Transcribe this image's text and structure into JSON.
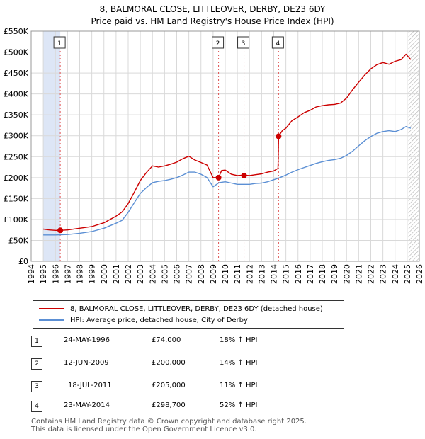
{
  "title_line1": "8, BALMORAL CLOSE, LITTLEOVER, DERBY, DE23 6DY",
  "title_line2": "Price paid vs. HM Land Registry's House Price Index (HPI)",
  "colors": {
    "property": "#cc0000",
    "hpi": "#5b8fd4",
    "band": "#dde6f6",
    "marker_line": "#e05050"
  },
  "legend": {
    "property_label": "8, BALMORAL CLOSE, LITTLEOVER, DERBY, DE23 6DY (detached house)",
    "hpi_label": "HPI: Average price, detached house, City of Derby"
  },
  "transactions": [
    {
      "num": "1",
      "date": "24-MAY-1996",
      "price": "£74,000",
      "hpi_change": "18% ↑ HPI"
    },
    {
      "num": "2",
      "date": "12-JUN-2009",
      "price": "£200,000",
      "hpi_change": "14% ↑ HPI"
    },
    {
      "num": "3",
      "date": "18-JUL-2011",
      "price": "£205,000",
      "hpi_change": "11% ↑ HPI"
    },
    {
      "num": "4",
      "date": "23-MAY-2014",
      "price": "£298,700",
      "hpi_change": "52% ↑ HPI"
    }
  ],
  "footer": {
    "line1": "Contains HM Land Registry data © Crown copyright and database right 2025.",
    "line2": "This data is licensed under the Open Government Licence v3.0."
  },
  "chart_data": {
    "type": "line",
    "title": "8, BALMORAL CLOSE, LITTLEOVER, DERBY, DE23 6DY",
    "subtitle": "Price paid vs. HM Land Registry's House Price Index (HPI)",
    "xlim": [
      1994,
      2026
    ],
    "ylim": [
      0,
      550000
    ],
    "x_ticks": [
      1994,
      1995,
      1996,
      1997,
      1998,
      1999,
      2000,
      2001,
      2002,
      2003,
      2004,
      2005,
      2006,
      2007,
      2008,
      2009,
      2010,
      2011,
      2012,
      2013,
      2014,
      2015,
      2016,
      2017,
      2018,
      2019,
      2020,
      2021,
      2022,
      2023,
      2024,
      2025,
      2026
    ],
    "x_tick_labels": [
      "1994",
      "1995",
      "1996",
      "1997",
      "1998",
      "1999",
      "2000",
      "2001",
      "2002",
      "2003",
      "2004",
      "2005",
      "2006",
      "2007",
      "2008",
      "2009",
      "2010",
      "2011",
      "2012",
      "2013",
      "2014",
      "2015",
      "2016",
      "2017",
      "2018",
      "2019",
      "2020",
      "2021",
      "2022",
      "2023",
      "2024",
      "2025",
      "2026"
    ],
    "y_ticks": [
      0,
      50000,
      100000,
      150000,
      200000,
      250000,
      300000,
      350000,
      400000,
      450000,
      500000,
      550000
    ],
    "y_tick_labels": [
      "£0",
      "£50K",
      "£100K",
      "£150K",
      "£200K",
      "£250K",
      "£300K",
      "£350K",
      "£400K",
      "£450K",
      "£500K",
      "£550K"
    ],
    "shaded_band": [
      1995.0,
      1996.4
    ],
    "future_hatch_from": 2025.1,
    "grid": true,
    "series": [
      {
        "name": "8, BALMORAL CLOSE, LITTLEOVER, DERBY, DE23 6DY (detached house)",
        "color": "#cc0000",
        "x": [
          1995.0,
          1995.5,
          1996.0,
          1996.4,
          1997.0,
          1998.0,
          1999.0,
          2000.0,
          2001.0,
          2001.5,
          2002.0,
          2002.5,
          2003.0,
          2003.5,
          2004.0,
          2004.5,
          2005.0,
          2005.5,
          2006.0,
          2006.5,
          2007.0,
          2007.5,
          2008.0,
          2008.5,
          2009.0,
          2009.45,
          2009.7,
          2010.0,
          2010.5,
          2011.0,
          2011.5,
          2012.0,
          2012.5,
          2013.0,
          2013.5,
          2014.0,
          2014.35,
          2014.4,
          2014.7,
          2015.0,
          2015.5,
          2016.0,
          2016.5,
          2017.0,
          2017.5,
          2018.0,
          2018.5,
          2019.0,
          2019.5,
          2020.0,
          2020.5,
          2021.0,
          2021.5,
          2022.0,
          2022.5,
          2023.0,
          2023.5,
          2024.0,
          2024.5,
          2024.9,
          2025.3
        ],
        "values": [
          77000,
          75000,
          74000,
          74000,
          75000,
          79000,
          83000,
          92000,
          108000,
          118000,
          138000,
          165000,
          193000,
          212000,
          228000,
          225000,
          228000,
          232000,
          237000,
          245000,
          251000,
          242000,
          236000,
          230000,
          200000,
          200000,
          217000,
          218000,
          208000,
          205000,
          206000,
          205000,
          207000,
          209000,
          213000,
          216000,
          222000,
          298700,
          312000,
          318000,
          336000,
          345000,
          355000,
          361000,
          369000,
          372000,
          374000,
          375000,
          378000,
          390000,
          410000,
          428000,
          445000,
          460000,
          470000,
          475000,
          471000,
          478000,
          482000,
          495000,
          482000
        ]
      },
      {
        "name": "HPI: Average price, detached house, City of Derby",
        "color": "#5b8fd4",
        "x": [
          1995.0,
          1996.0,
          1997.0,
          1998.0,
          1999.0,
          2000.0,
          2001.0,
          2001.5,
          2002.0,
          2002.5,
          2003.0,
          2003.5,
          2004.0,
          2004.5,
          2005.0,
          2005.5,
          2006.0,
          2006.5,
          2007.0,
          2007.5,
          2008.0,
          2008.5,
          2009.0,
          2009.5,
          2010.0,
          2010.5,
          2011.0,
          2011.5,
          2012.0,
          2012.5,
          2013.0,
          2013.5,
          2014.0,
          2014.5,
          2015.0,
          2015.5,
          2016.0,
          2016.5,
          2017.0,
          2017.5,
          2018.0,
          2018.5,
          2019.0,
          2019.5,
          2020.0,
          2020.5,
          2021.0,
          2021.5,
          2022.0,
          2022.5,
          2023.0,
          2023.5,
          2024.0,
          2024.5,
          2024.9,
          2025.3
        ],
        "values": [
          63000,
          63000,
          64000,
          67000,
          71000,
          79000,
          91000,
          98000,
          117000,
          140000,
          162000,
          176000,
          188000,
          191000,
          193000,
          196000,
          200000,
          206000,
          213000,
          213000,
          208000,
          200000,
          178000,
          188000,
          190000,
          187000,
          184000,
          184000,
          184000,
          186000,
          187000,
          190000,
          195000,
          200000,
          206000,
          213000,
          219000,
          224000,
          229000,
          234000,
          238000,
          241000,
          243000,
          246000,
          253000,
          263000,
          276000,
          288000,
          298000,
          306000,
          310000,
          312000,
          310000,
          315000,
          322000,
          318000
        ]
      }
    ],
    "sale_markers": [
      {
        "num": "1",
        "x": 1996.4,
        "value": 74000
      },
      {
        "num": "2",
        "x": 2009.45,
        "value": 200000
      },
      {
        "num": "3",
        "x": 2011.55,
        "value": 205000
      },
      {
        "num": "4",
        "x": 2014.4,
        "value": 298700
      }
    ]
  }
}
